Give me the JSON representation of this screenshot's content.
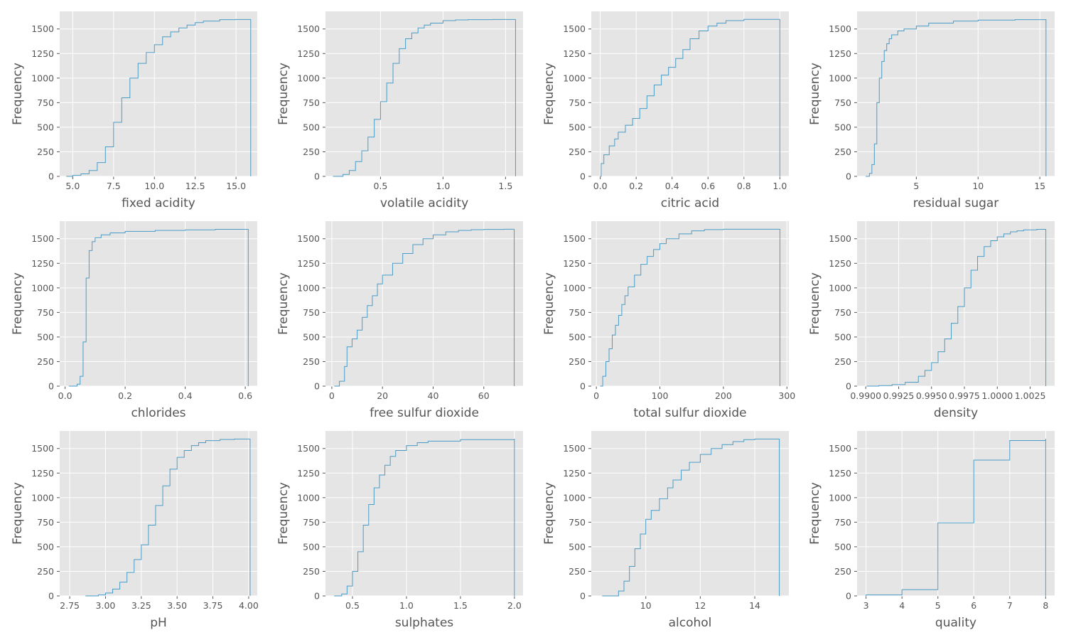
{
  "chart_data": [
    {
      "type": "line",
      "name": "fixed-acidity",
      "xlabel": "fixed acidity",
      "ylabel": "Frequency",
      "xlim": [
        4.2,
        16.3
      ],
      "ylim": [
        0,
        1679
      ],
      "xticks": [
        5,
        7.5,
        10,
        12.5,
        15
      ],
      "xticklabels": [
        "5.0",
        "7.5",
        "10.0",
        "12.5",
        "15.0"
      ],
      "yticks": [
        0,
        250,
        500,
        750,
        1000,
        1250,
        1500
      ],
      "yticklabels": [
        "0",
        "250",
        "500",
        "750",
        "1000",
        "1250",
        "1500"
      ],
      "x": [
        4.6,
        5.0,
        5.5,
        6.0,
        6.5,
        7.0,
        7.5,
        8.0,
        8.5,
        9.0,
        9.5,
        10.0,
        10.5,
        11.0,
        11.5,
        12.0,
        12.5,
        13.0,
        14.0,
        15.0,
        15.9
      ],
      "y": [
        0,
        10,
        25,
        60,
        140,
        300,
        550,
        800,
        1000,
        1150,
        1260,
        1340,
        1420,
        1470,
        1510,
        1540,
        1565,
        1580,
        1595,
        1597,
        1599
      ]
    },
    {
      "type": "line",
      "name": "volatile-acidity",
      "xlabel": "volatile acidity",
      "ylabel": "Frequency",
      "xlim": [
        0.06,
        1.64
      ],
      "ylim": [
        0,
        1679
      ],
      "xticks": [
        0.5,
        1.0,
        1.5
      ],
      "xticklabels": [
        "0.5",
        "1.0",
        "1.5"
      ],
      "yticks": [
        0,
        250,
        500,
        750,
        1000,
        1250,
        1500
      ],
      "yticklabels": [
        "0",
        "250",
        "500",
        "750",
        "1000",
        "1250",
        "1500"
      ],
      "x": [
        0.12,
        0.2,
        0.25,
        0.3,
        0.35,
        0.4,
        0.45,
        0.5,
        0.55,
        0.6,
        0.65,
        0.7,
        0.75,
        0.8,
        0.85,
        0.9,
        1.0,
        1.1,
        1.2,
        1.4,
        1.58
      ],
      "y": [
        0,
        20,
        60,
        150,
        260,
        400,
        580,
        760,
        950,
        1150,
        1300,
        1400,
        1460,
        1510,
        1540,
        1560,
        1585,
        1592,
        1595,
        1597,
        1599
      ]
    },
    {
      "type": "line",
      "name": "citric-acid",
      "xlabel": "citric acid",
      "ylabel": "Frequency",
      "xlim": [
        -0.05,
        1.05
      ],
      "ylim": [
        0,
        1679
      ],
      "xticks": [
        0,
        0.2,
        0.4,
        0.6,
        0.8,
        1.0
      ],
      "xticklabels": [
        "0.0",
        "0.2",
        "0.4",
        "0.6",
        "0.8",
        "1.0"
      ],
      "yticks": [
        0,
        250,
        500,
        750,
        1000,
        1250,
        1500
      ],
      "yticklabels": [
        "0",
        "250",
        "500",
        "750",
        "1000",
        "1250",
        "1500"
      ],
      "x": [
        0,
        0.005,
        0.02,
        0.05,
        0.08,
        0.1,
        0.14,
        0.18,
        0.22,
        0.26,
        0.3,
        0.34,
        0.38,
        0.42,
        0.46,
        0.5,
        0.55,
        0.6,
        0.65,
        0.7,
        0.8,
        1.0
      ],
      "y": [
        0,
        130,
        220,
        310,
        380,
        450,
        520,
        590,
        690,
        820,
        930,
        1030,
        1110,
        1200,
        1290,
        1400,
        1480,
        1530,
        1560,
        1585,
        1598,
        1599
      ]
    },
    {
      "type": "line",
      "name": "residual-sugar",
      "xlabel": "residual sugar",
      "ylabel": "Frequency",
      "xlim": [
        0.2,
        16.2
      ],
      "ylim": [
        0,
        1679
      ],
      "xticks": [
        5,
        10,
        15
      ],
      "xticklabels": [
        "5",
        "10",
        "15"
      ],
      "yticks": [
        0,
        250,
        500,
        750,
        1000,
        1250,
        1500
      ],
      "yticklabels": [
        "0",
        "250",
        "500",
        "750",
        "1000",
        "1250",
        "1500"
      ],
      "x": [
        0.9,
        1.2,
        1.4,
        1.6,
        1.8,
        2.0,
        2.2,
        2.4,
        2.6,
        2.8,
        3.0,
        3.5,
        4.0,
        5.0,
        6.0,
        8.0,
        10.0,
        13.0,
        15.5
      ],
      "y": [
        0,
        30,
        120,
        330,
        750,
        1000,
        1170,
        1280,
        1350,
        1400,
        1440,
        1480,
        1500,
        1530,
        1560,
        1580,
        1590,
        1595,
        1599
      ]
    },
    {
      "type": "line",
      "name": "chlorides",
      "xlabel": "chlorides",
      "ylabel": "Frequency",
      "xlim": [
        -0.018,
        0.64
      ],
      "ylim": [
        0,
        1679
      ],
      "xticks": [
        0,
        0.2,
        0.4,
        0.6
      ],
      "xticklabels": [
        "0.0",
        "0.2",
        "0.4",
        "0.6"
      ],
      "yticks": [
        0,
        250,
        500,
        750,
        1000,
        1250,
        1500
      ],
      "yticklabels": [
        "0",
        "250",
        "500",
        "750",
        "1000",
        "1250",
        "1500"
      ],
      "x": [
        0.012,
        0.04,
        0.05,
        0.06,
        0.07,
        0.08,
        0.09,
        0.1,
        0.12,
        0.15,
        0.2,
        0.3,
        0.4,
        0.5,
        0.61
      ],
      "y": [
        0,
        20,
        100,
        450,
        1100,
        1380,
        1470,
        1510,
        1540,
        1560,
        1575,
        1585,
        1590,
        1596,
        1599
      ]
    },
    {
      "type": "line",
      "name": "free-sulfur-dioxide",
      "xlabel": "free sulfur dioxide",
      "ylabel": "Frequency",
      "xlim": [
        -2.5,
        75.5
      ],
      "ylim": [
        0,
        1679
      ],
      "xticks": [
        0,
        20,
        40,
        60
      ],
      "xticklabels": [
        "0",
        "20",
        "40",
        "60"
      ],
      "yticks": [
        0,
        250,
        500,
        750,
        1000,
        1250,
        1500
      ],
      "yticklabels": [
        "0",
        "250",
        "500",
        "750",
        "1000",
        "1250",
        "1500"
      ],
      "x": [
        1,
        3,
        5,
        6,
        8,
        10,
        12,
        14,
        16,
        18,
        20,
        24,
        28,
        32,
        36,
        40,
        45,
        50,
        55,
        60,
        68,
        72
      ],
      "y": [
        0,
        50,
        200,
        400,
        480,
        570,
        700,
        820,
        920,
        1040,
        1130,
        1250,
        1350,
        1440,
        1500,
        1540,
        1570,
        1585,
        1592,
        1595,
        1597,
        1599
      ]
    },
    {
      "type": "line",
      "name": "total-sulfur-dioxide",
      "xlabel": "total sulfur dioxide",
      "ylabel": "Frequency",
      "xlim": [
        -8,
        303
      ],
      "ylim": [
        0,
        1679
      ],
      "xticks": [
        0,
        100,
        200,
        300
      ],
      "xticklabels": [
        "0",
        "100",
        "200",
        "300"
      ],
      "yticks": [
        0,
        250,
        500,
        750,
        1000,
        1250,
        1500
      ],
      "yticklabels": [
        "0",
        "250",
        "500",
        "750",
        "1000",
        "1250",
        "1500"
      ],
      "x": [
        6,
        10,
        15,
        20,
        25,
        30,
        35,
        40,
        45,
        50,
        60,
        70,
        80,
        90,
        100,
        110,
        130,
        150,
        170,
        200,
        289
      ],
      "y": [
        0,
        100,
        250,
        380,
        520,
        620,
        720,
        830,
        920,
        1010,
        1130,
        1240,
        1320,
        1390,
        1450,
        1500,
        1550,
        1580,
        1593,
        1597,
        1599
      ]
    },
    {
      "type": "line",
      "name": "density",
      "xlabel": "density",
      "ylabel": "Frequency",
      "xlim": [
        0.98934,
        1.00436
      ],
      "ylim": [
        0,
        1679
      ],
      "xticks": [
        0.99,
        0.9925,
        0.995,
        0.9975,
        1.0,
        1.0025
      ],
      "xticklabels": [
        "0.9900",
        "0.9925",
        "0.9950",
        "0.9975",
        "1.0000",
        "1.0025"
      ],
      "yticks": [
        0,
        250,
        500,
        750,
        1000,
        1250,
        1500
      ],
      "yticklabels": [
        "0",
        "250",
        "500",
        "750",
        "1000",
        "1250",
        "1500"
      ],
      "x": [
        0.99007,
        0.991,
        0.992,
        0.993,
        0.994,
        0.9945,
        0.995,
        0.9955,
        0.996,
        0.9965,
        0.997,
        0.9975,
        0.998,
        0.9985,
        0.999,
        0.9995,
        1.0,
        1.0005,
        1.001,
        1.0015,
        1.002,
        1.003,
        1.00369
      ],
      "y": [
        0,
        5,
        15,
        40,
        100,
        160,
        240,
        350,
        480,
        640,
        810,
        1000,
        1180,
        1320,
        1420,
        1480,
        1520,
        1550,
        1570,
        1580,
        1590,
        1596,
        1599
      ]
    },
    {
      "type": "line",
      "name": "ph",
      "xlabel": "pH",
      "ylabel": "Frequency",
      "xlim": [
        2.68,
        4.06
      ],
      "ylim": [
        0,
        1679
      ],
      "xticks": [
        2.75,
        3.0,
        3.25,
        3.5,
        3.75,
        4.0
      ],
      "xticklabels": [
        "2.75",
        "3.00",
        "3.25",
        "3.50",
        "3.75",
        "4.00"
      ],
      "yticks": [
        0,
        250,
        500,
        750,
        1000,
        1250,
        1500
      ],
      "yticklabels": [
        "0",
        "250",
        "500",
        "750",
        "1000",
        "1250",
        "1500"
      ],
      "x": [
        2.86,
        2.95,
        3.0,
        3.05,
        3.1,
        3.15,
        3.2,
        3.25,
        3.3,
        3.35,
        3.4,
        3.45,
        3.5,
        3.55,
        3.6,
        3.65,
        3.7,
        3.8,
        3.9,
        4.01
      ],
      "y": [
        0,
        10,
        30,
        70,
        140,
        240,
        370,
        520,
        720,
        920,
        1120,
        1290,
        1410,
        1480,
        1530,
        1560,
        1580,
        1592,
        1597,
        1599
      ]
    },
    {
      "type": "line",
      "name": "sulphates",
      "xlabel": "sulphates",
      "ylabel": "Frequency",
      "xlim": [
        0.25,
        2.08
      ],
      "ylim": [
        0,
        1679
      ],
      "xticks": [
        0.5,
        1.0,
        1.5,
        2.0
      ],
      "xticklabels": [
        "0.5",
        "1.0",
        "1.5",
        "2.0"
      ],
      "yticks": [
        0,
        250,
        500,
        750,
        1000,
        1250,
        1500
      ],
      "yticklabels": [
        "0",
        "250",
        "500",
        "750",
        "1000",
        "1250",
        "1500"
      ],
      "x": [
        0.33,
        0.4,
        0.45,
        0.5,
        0.55,
        0.6,
        0.65,
        0.7,
        0.75,
        0.8,
        0.85,
        0.9,
        1.0,
        1.1,
        1.2,
        1.5,
        2.0
      ],
      "y": [
        0,
        20,
        100,
        250,
        450,
        720,
        930,
        1100,
        1230,
        1330,
        1420,
        1480,
        1530,
        1560,
        1575,
        1590,
        1599
      ]
    },
    {
      "type": "line",
      "name": "alcohol",
      "xlabel": "alcohol",
      "ylabel": "Frequency",
      "xlim": [
        8.0,
        15.25
      ],
      "ylim": [
        0,
        1679
      ],
      "xticks": [
        10,
        12,
        14
      ],
      "xticklabels": [
        "10",
        "12",
        "14"
      ],
      "yticks": [
        0,
        250,
        500,
        750,
        1000,
        1250,
        1500
      ],
      "yticklabels": [
        "0",
        "250",
        "500",
        "750",
        "1000",
        "1250",
        "1500"
      ],
      "x": [
        8.4,
        9.0,
        9.2,
        9.4,
        9.6,
        9.8,
        10.0,
        10.2,
        10.5,
        10.8,
        11.0,
        11.3,
        11.6,
        12.0,
        12.4,
        12.8,
        13.2,
        13.6,
        14.0,
        14.9
      ],
      "y": [
        0,
        50,
        150,
        300,
        480,
        630,
        780,
        870,
        990,
        1100,
        1180,
        1280,
        1360,
        1440,
        1500,
        1540,
        1570,
        1590,
        1597,
        1599
      ]
    },
    {
      "type": "line",
      "name": "quality",
      "xlabel": "quality",
      "ylabel": "Frequency",
      "xlim": [
        2.75,
        8.25
      ],
      "ylim": [
        0,
        1679
      ],
      "xticks": [
        3,
        4,
        5,
        6,
        7,
        8
      ],
      "xticklabels": [
        "3",
        "4",
        "5",
        "6",
        "7",
        "8"
      ],
      "yticks": [
        0,
        250,
        500,
        750,
        1000,
        1250,
        1500
      ],
      "yticklabels": [
        "0",
        "250",
        "500",
        "750",
        "1000",
        "1250",
        "1500"
      ],
      "x": [
        3,
        4,
        5,
        6,
        7,
        8
      ],
      "y": [
        10,
        63,
        744,
        1382,
        1581,
        1599
      ]
    }
  ]
}
